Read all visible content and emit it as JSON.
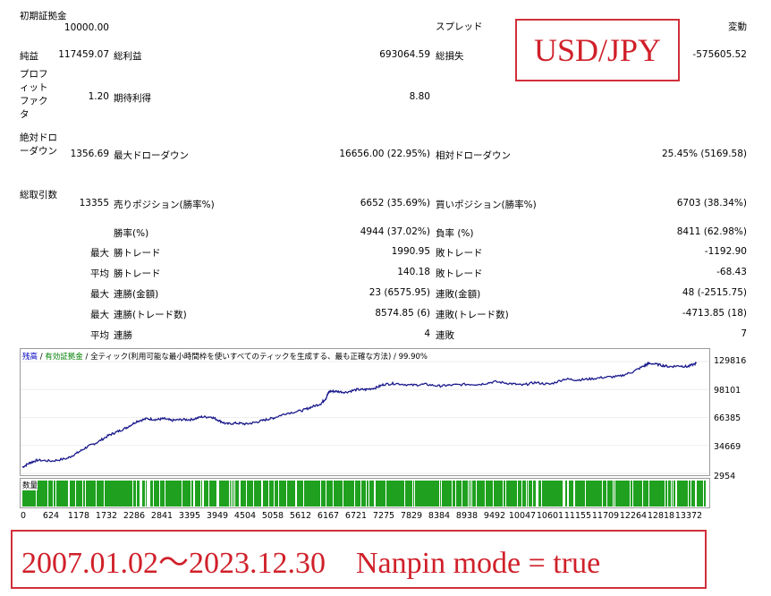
{
  "report": {
    "initial_deposit": {
      "label": "初期証拠金",
      "value": "10000.00"
    },
    "spread": {
      "label": "スプレッド",
      "value": "変動"
    },
    "net_profit": {
      "label": "純益",
      "value": "117459.07"
    },
    "gross_profit": {
      "label": "総利益",
      "value": "693064.59"
    },
    "gross_loss": {
      "label": "総損失",
      "value": "-575605.52"
    },
    "profit_factor": {
      "label": "プロフィットファクタ",
      "value": "1.20"
    },
    "expected_payoff": {
      "label": "期待利得",
      "value": "8.80"
    },
    "absolute_drawdown": {
      "label": "絶対ドローダウン",
      "value": "1356.69"
    },
    "max_drawdown": {
      "label": "最大ドローダウン",
      "value": "16656.00 (22.95%)"
    },
    "relative_drawdown": {
      "label": "相対ドローダウン",
      "value": "25.45% (5169.58)"
    },
    "total_trades": {
      "label": "総取引数",
      "value": "13355"
    },
    "short_positions": {
      "label": "売りポジション(勝率%)",
      "value": "6652 (35.69%)"
    },
    "long_positions": {
      "label": "買いポジション(勝率%)",
      "value": "6703 (38.34%)"
    },
    "win_rate": {
      "label": "勝率(%)",
      "value": "4944 (37.02%)"
    },
    "loss_rate": {
      "label": "負率 (%)",
      "value": "8411 (62.98%)"
    },
    "rows": [
      {
        "prefix": "最大",
        "win_label": "勝トレード",
        "win_value": "1990.95",
        "loss_label": "敗トレード",
        "loss_value": "-1192.90"
      },
      {
        "prefix": "平均",
        "win_label": "勝トレード",
        "win_value": "140.18",
        "loss_label": "敗トレード",
        "loss_value": "-68.43"
      },
      {
        "prefix": "最大",
        "win_label": "連勝(金額)",
        "win_value": "23 (6575.95)",
        "loss_label": "連敗(金額)",
        "loss_value": "48 (-2515.75)"
      },
      {
        "prefix": "最大",
        "win_label": "連勝(トレード数)",
        "win_value": "8574.85 (6)",
        "loss_label": "連敗(トレード数)",
        "loss_value": "-4713.85 (18)"
      },
      {
        "prefix": "平均",
        "win_label": "連勝",
        "win_value": "4",
        "loss_label": "連敗",
        "loss_value": "7"
      }
    ]
  },
  "overlay": {
    "pair": "USD/JPY",
    "period": "2007.01.02～2023.12.30　Nanpin mode = true"
  },
  "chart_data": {
    "type": "line",
    "legend": [
      "残高",
      "有効証拠金",
      "全ティック(利用可能な最小時間枠を使いすべてのティックを生成する、最も正確な方法)",
      "99.90%"
    ],
    "volume_label": "数量",
    "yticks": [
      "129816",
      "98101",
      "66385",
      "34669",
      "2954"
    ],
    "xticks": [
      "0",
      "624",
      "1178",
      "1732",
      "2286",
      "2841",
      "3395",
      "3949",
      "4504",
      "5058",
      "5612",
      "6167",
      "6721",
      "7275",
      "7829",
      "8384",
      "8938",
      "9492",
      "10047",
      "10601",
      "11155",
      "11709",
      "12264",
      "12818",
      "13372"
    ],
    "ylim": [
      2954,
      129816
    ],
    "xlim": [
      0,
      13700
    ],
    "series": [
      {
        "color": "#1a1a8c",
        "x": [
          0,
          150,
          300,
          600,
          900,
          1100,
          1300,
          1500,
          1732,
          1900,
          2100,
          2300,
          2500,
          2700,
          2841,
          3000,
          3200,
          3395,
          3600,
          3800,
          3949,
          4100,
          4300,
          4504,
          4700,
          4900,
          5058,
          5300,
          5612,
          5800,
          6000,
          6100,
          6167,
          6300,
          6500,
          6721,
          6900,
          7100,
          7275,
          7500,
          7829,
          8100,
          8384,
          8600,
          8938,
          9200,
          9492,
          9800,
          10047,
          10300,
          10601,
          10900,
          11155,
          11400,
          11709,
          12000,
          12264,
          12500,
          12600,
          12818,
          13000,
          13200,
          13372,
          13550
        ],
        "y": [
          10000,
          15000,
          18000,
          17000,
          20000,
          26000,
          33000,
          38000,
          46000,
          50000,
          55000,
          62000,
          65000,
          64000,
          65000,
          63000,
          64000,
          64000,
          67000,
          67000,
          63000,
          59000,
          60000,
          59000,
          61000,
          64000,
          66000,
          71000,
          74000,
          78000,
          82000,
          88000,
          96000,
          96000,
          95000,
          98000,
          98000,
          100000,
          104000,
          105000,
          103000,
          104000,
          102000,
          103000,
          104000,
          104000,
          107000,
          105000,
          103000,
          106000,
          104000,
          110000,
          109000,
          110000,
          112000,
          113000,
          118000,
          125000,
          128000,
          126000,
          124000,
          125000,
          124000,
          128000
        ]
      }
    ]
  }
}
